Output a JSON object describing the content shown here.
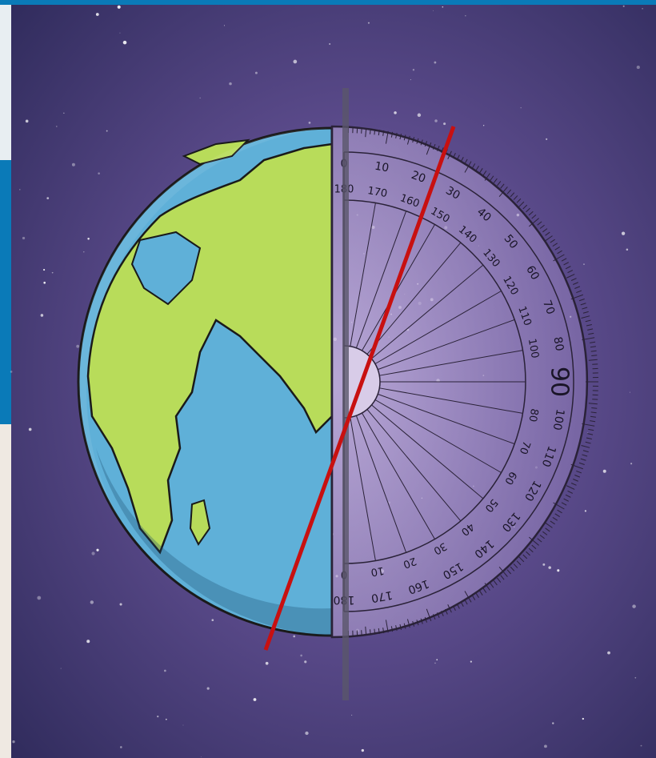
{
  "protractor": {
    "outer_scale": [
      0,
      10,
      20,
      30,
      40,
      50,
      60,
      70,
      80,
      90,
      100,
      110,
      120,
      130,
      140,
      150,
      160,
      170,
      180
    ],
    "inner_scale": [
      180,
      170,
      160,
      150,
      140,
      130,
      120,
      110,
      100,
      80,
      70,
      60,
      50,
      40,
      30,
      20,
      10,
      0
    ]
  }
}
